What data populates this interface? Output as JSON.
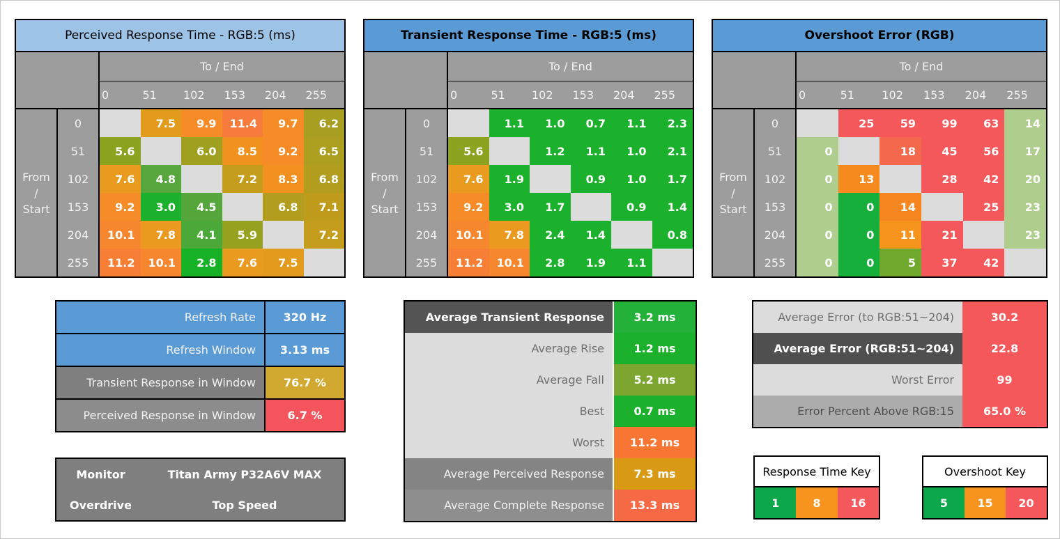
{
  "axis": {
    "to_label": "To / End",
    "from_label_lines": [
      "From",
      "/",
      "Start"
    ],
    "levels": [
      "0",
      "51",
      "102",
      "153",
      "204",
      "255"
    ]
  },
  "tables": [
    {
      "title": "Perceived Response Time - RGB:5 (ms)",
      "title_bg": "#9DC3E6",
      "title_bold": false,
      "rows": [
        [
          null,
          {
            "v": "7.5",
            "c": "#E39B1E"
          },
          {
            "v": "9.9",
            "c": "#F68C28"
          },
          {
            "v": "11.4",
            "c": "#F67B3C"
          },
          {
            "v": "9.7",
            "c": "#F68C28"
          },
          {
            "v": "6.2",
            "c": "#A89E20"
          }
        ],
        [
          {
            "v": "5.6",
            "c": "#8CA320"
          },
          null,
          {
            "v": "6.0",
            "c": "#9FA01F"
          },
          {
            "v": "8.5",
            "c": "#F0921D"
          },
          {
            "v": "9.2",
            "c": "#F68C28"
          },
          {
            "v": "6.5",
            "c": "#AC9E1F"
          }
        ],
        [
          {
            "v": "7.6",
            "c": "#E89B1E"
          },
          {
            "v": "4.8",
            "c": "#57A63E"
          },
          null,
          {
            "v": "7.2",
            "c": "#C59D1D"
          },
          {
            "v": "8.3",
            "c": "#F2911F"
          },
          {
            "v": "6.8",
            "c": "#B29D1E"
          }
        ],
        [
          {
            "v": "9.2",
            "c": "#F68C28"
          },
          {
            "v": "3.0",
            "c": "#1CB12C"
          },
          {
            "v": "4.5",
            "c": "#55A73C"
          },
          null,
          {
            "v": "6.8",
            "c": "#B29D1E"
          },
          {
            "v": "7.1",
            "c": "#C09C1D"
          }
        ],
        [
          {
            "v": "10.1",
            "c": "#F6872E"
          },
          {
            "v": "7.8",
            "c": "#EA9A1E"
          },
          {
            "v": "4.1",
            "c": "#4AA939"
          },
          {
            "v": "5.9",
            "c": "#97A120"
          },
          null,
          {
            "v": "7.2",
            "c": "#C59D1D"
          }
        ],
        [
          {
            "v": "11.2",
            "c": "#F67F35"
          },
          {
            "v": "10.1",
            "c": "#F6872E"
          },
          {
            "v": "2.8",
            "c": "#17B125"
          },
          {
            "v": "7.6",
            "c": "#E89B1E"
          },
          {
            "v": "7.5",
            "c": "#E39B1E"
          },
          null
        ]
      ]
    },
    {
      "title": "Transient Response Time - RGB:5 (ms)",
      "title_bg": "#5B9BD5",
      "title_bold": true,
      "rows": [
        [
          null,
          {
            "v": "1.1",
            "c": "#1CB12C"
          },
          {
            "v": "1.0",
            "c": "#1CB12C"
          },
          {
            "v": "0.7",
            "c": "#1CB12C"
          },
          {
            "v": "1.1",
            "c": "#1CB12C"
          },
          {
            "v": "2.3",
            "c": "#1CB12C"
          }
        ],
        [
          {
            "v": "5.6",
            "c": "#8CA320"
          },
          null,
          {
            "v": "1.2",
            "c": "#1CB12C"
          },
          {
            "v": "1.1",
            "c": "#1CB12C"
          },
          {
            "v": "1.0",
            "c": "#1CB12C"
          },
          {
            "v": "2.1",
            "c": "#1CB12C"
          }
        ],
        [
          {
            "v": "7.6",
            "c": "#E89B1E"
          },
          {
            "v": "1.9",
            "c": "#1CB12C"
          },
          null,
          {
            "v": "0.9",
            "c": "#1CB12C"
          },
          {
            "v": "1.0",
            "c": "#1CB12C"
          },
          {
            "v": "1.7",
            "c": "#1CB12C"
          }
        ],
        [
          {
            "v": "9.2",
            "c": "#F68C28"
          },
          {
            "v": "3.0",
            "c": "#1CB12C"
          },
          {
            "v": "1.7",
            "c": "#1CB12C"
          },
          null,
          {
            "v": "0.9",
            "c": "#1CB12C"
          },
          {
            "v": "1.4",
            "c": "#1CB12C"
          }
        ],
        [
          {
            "v": "10.1",
            "c": "#F6872E"
          },
          {
            "v": "7.8",
            "c": "#EA9A1E"
          },
          {
            "v": "2.4",
            "c": "#1CB12C"
          },
          {
            "v": "1.4",
            "c": "#1CB12C"
          },
          null,
          {
            "v": "0.8",
            "c": "#1CB12C"
          }
        ],
        [
          {
            "v": "11.2",
            "c": "#F67F35"
          },
          {
            "v": "10.1",
            "c": "#F6872E"
          },
          {
            "v": "2.8",
            "c": "#1CB12C"
          },
          {
            "v": "1.9",
            "c": "#1CB12C"
          },
          {
            "v": "1.1",
            "c": "#1CB12C"
          },
          null
        ]
      ]
    },
    {
      "title": "Overshoot Error (RGB)",
      "title_bg": "#5B9BD5",
      "title_bold": true,
      "rows": [
        [
          null,
          {
            "v": "25",
            "c": "#F4585A"
          },
          {
            "v": "59",
            "c": "#F4585A"
          },
          {
            "v": "99",
            "c": "#F4585A"
          },
          {
            "v": "63",
            "c": "#F4585A"
          },
          {
            "v": "14",
            "c": "#AFCE8E"
          }
        ],
        [
          {
            "v": "0",
            "c": "#AFCE8E"
          },
          null,
          {
            "v": "18",
            "c": "#F4684C"
          },
          {
            "v": "45",
            "c": "#F4585A"
          },
          {
            "v": "56",
            "c": "#F4585A"
          },
          {
            "v": "17",
            "c": "#AFCE8E"
          }
        ],
        [
          {
            "v": "0",
            "c": "#AFCE8E"
          },
          {
            "v": "13",
            "c": "#F68A1E"
          },
          null,
          {
            "v": "28",
            "c": "#F4585A"
          },
          {
            "v": "42",
            "c": "#F4585A"
          },
          {
            "v": "20",
            "c": "#AFCE8E"
          }
        ],
        [
          {
            "v": "0",
            "c": "#AFCE8E"
          },
          {
            "v": "0",
            "c": "#16AF3C"
          },
          {
            "v": "14",
            "c": "#F6861F"
          },
          null,
          {
            "v": "25",
            "c": "#F4585A"
          },
          {
            "v": "23",
            "c": "#AFCE8E"
          }
        ],
        [
          {
            "v": "0",
            "c": "#AFCE8E"
          },
          {
            "v": "0",
            "c": "#16AF3C"
          },
          {
            "v": "11",
            "c": "#F7941D"
          },
          {
            "v": "21",
            "c": "#F4585A"
          },
          null,
          {
            "v": "23",
            "c": "#AFCE8E"
          }
        ],
        [
          {
            "v": "0",
            "c": "#AFCE8E"
          },
          {
            "v": "0",
            "c": "#16AF3C"
          },
          {
            "v": "5",
            "c": "#6FA82D"
          },
          {
            "v": "37",
            "c": "#F4585A"
          },
          {
            "v": "42",
            "c": "#F4585A"
          },
          null
        ]
      ]
    }
  ],
  "left_summary": {
    "rows": [
      {
        "label": "Refresh Rate",
        "value": "320 Hz",
        "label_bg": "#5B9BD5",
        "label_fg": "#F2F2F2",
        "label_bold": false,
        "value_bg": "#5B9BD5"
      },
      {
        "label": "Refresh Window",
        "value": "3.13 ms",
        "label_bg": "#5B9BD5",
        "label_fg": "#F2F2F2",
        "label_bold": false,
        "value_bg": "#5B9BD5"
      },
      {
        "label": "Transient Response in Window",
        "value": "76.7 %",
        "label_bg": "#7F7F7F",
        "label_fg": "#F2F2F2",
        "label_bold": false,
        "value_bg": "#D2A930"
      },
      {
        "label": "Perceived Response in Window",
        "value": "6.7 %",
        "label_bg": "#8C8C8C",
        "label_fg": "#F2F2F2",
        "label_bold": false,
        "value_bg": "#F4555C"
      }
    ]
  },
  "monitor_info": {
    "rows": [
      {
        "label": "Monitor",
        "value": "Titan Army P32A6V MAX",
        "label_bg": "#7F7F7F",
        "label_fg": "#FFFFFF",
        "label_bold": true,
        "value_bg": "#7F7F7F"
      },
      {
        "label": "Overdrive",
        "value": "Top Speed",
        "label_bg": "#7F7F7F",
        "label_fg": "#FFFFFF",
        "label_bold": true,
        "value_bg": "#7F7F7F"
      }
    ]
  },
  "middle_summary": {
    "rows": [
      {
        "label": "Average Transient Response",
        "value": "3.2 ms",
        "label_bg": "#545454",
        "label_fg": "#FFFFFF",
        "label_bold": true,
        "value_bg": "#24B13A"
      },
      {
        "label": "Average Rise",
        "value": "1.2 ms",
        "label_bg": "#DCDCDC",
        "label_fg": "#6E6E6E",
        "label_bold": false,
        "value_bg": "#1CB12C"
      },
      {
        "label": "Average Fall",
        "value": "5.2 ms",
        "label_bg": "#DCDCDC",
        "label_fg": "#6E6E6E",
        "label_bold": false,
        "value_bg": "#7CA62F"
      },
      {
        "label": "Best",
        "value": "0.7 ms",
        "label_bg": "#DCDCDC",
        "label_fg": "#6E6E6E",
        "label_bold": false,
        "value_bg": "#1CB12C"
      },
      {
        "label": "Worst",
        "value": "11.2 ms",
        "label_bg": "#DCDCDC",
        "label_fg": "#6E6E6E",
        "label_bold": false,
        "value_bg": "#F87633"
      },
      {
        "label": "Average Perceived Response",
        "value": "7.3 ms",
        "label_bg": "#848484",
        "label_fg": "#F2F2F2",
        "label_bold": false,
        "value_bg": "#D89A15"
      },
      {
        "label": "Average Complete Response",
        "value": "13.3 ms",
        "label_bg": "#8E8E8E",
        "label_fg": "#F2F2F2",
        "label_bold": false,
        "value_bg": "#F56A45"
      }
    ]
  },
  "right_summary": {
    "rows": [
      {
        "label": "Average Error (to RGB:51~204)",
        "value": "30.2",
        "label_bg": "#DCDCDC",
        "label_fg": "#6E6E6E",
        "label_bold": false,
        "value_bg": "#F4585A"
      },
      {
        "label": "Average Error (RGB:51~204)",
        "value": "22.8",
        "label_bg": "#4F4F4F",
        "label_fg": "#FFFFFF",
        "label_bold": true,
        "value_bg": "#F4585A"
      },
      {
        "label": "Worst Error",
        "value": "99",
        "label_bg": "#DCDCDC",
        "label_fg": "#6E6E6E",
        "label_bold": false,
        "value_bg": "#F4585A"
      },
      {
        "label": "Error Percent Above RGB:15",
        "value": "65.0 %",
        "label_bg": "#ACACAC",
        "label_fg": "#4E4E4E",
        "label_bold": false,
        "value_bg": "#F4585A"
      }
    ]
  },
  "keys": [
    {
      "title": "Response Time Key",
      "cells": [
        {
          "v": "1",
          "c": "#0CA64B"
        },
        {
          "v": "8",
          "c": "#F7941D"
        },
        {
          "v": "16",
          "c": "#F4585C"
        }
      ]
    },
    {
      "title": "Overshoot Key",
      "cells": [
        {
          "v": "5",
          "c": "#0CA64B"
        },
        {
          "v": "15",
          "c": "#F7941D"
        },
        {
          "v": "20",
          "c": "#F4585C"
        }
      ]
    }
  ]
}
